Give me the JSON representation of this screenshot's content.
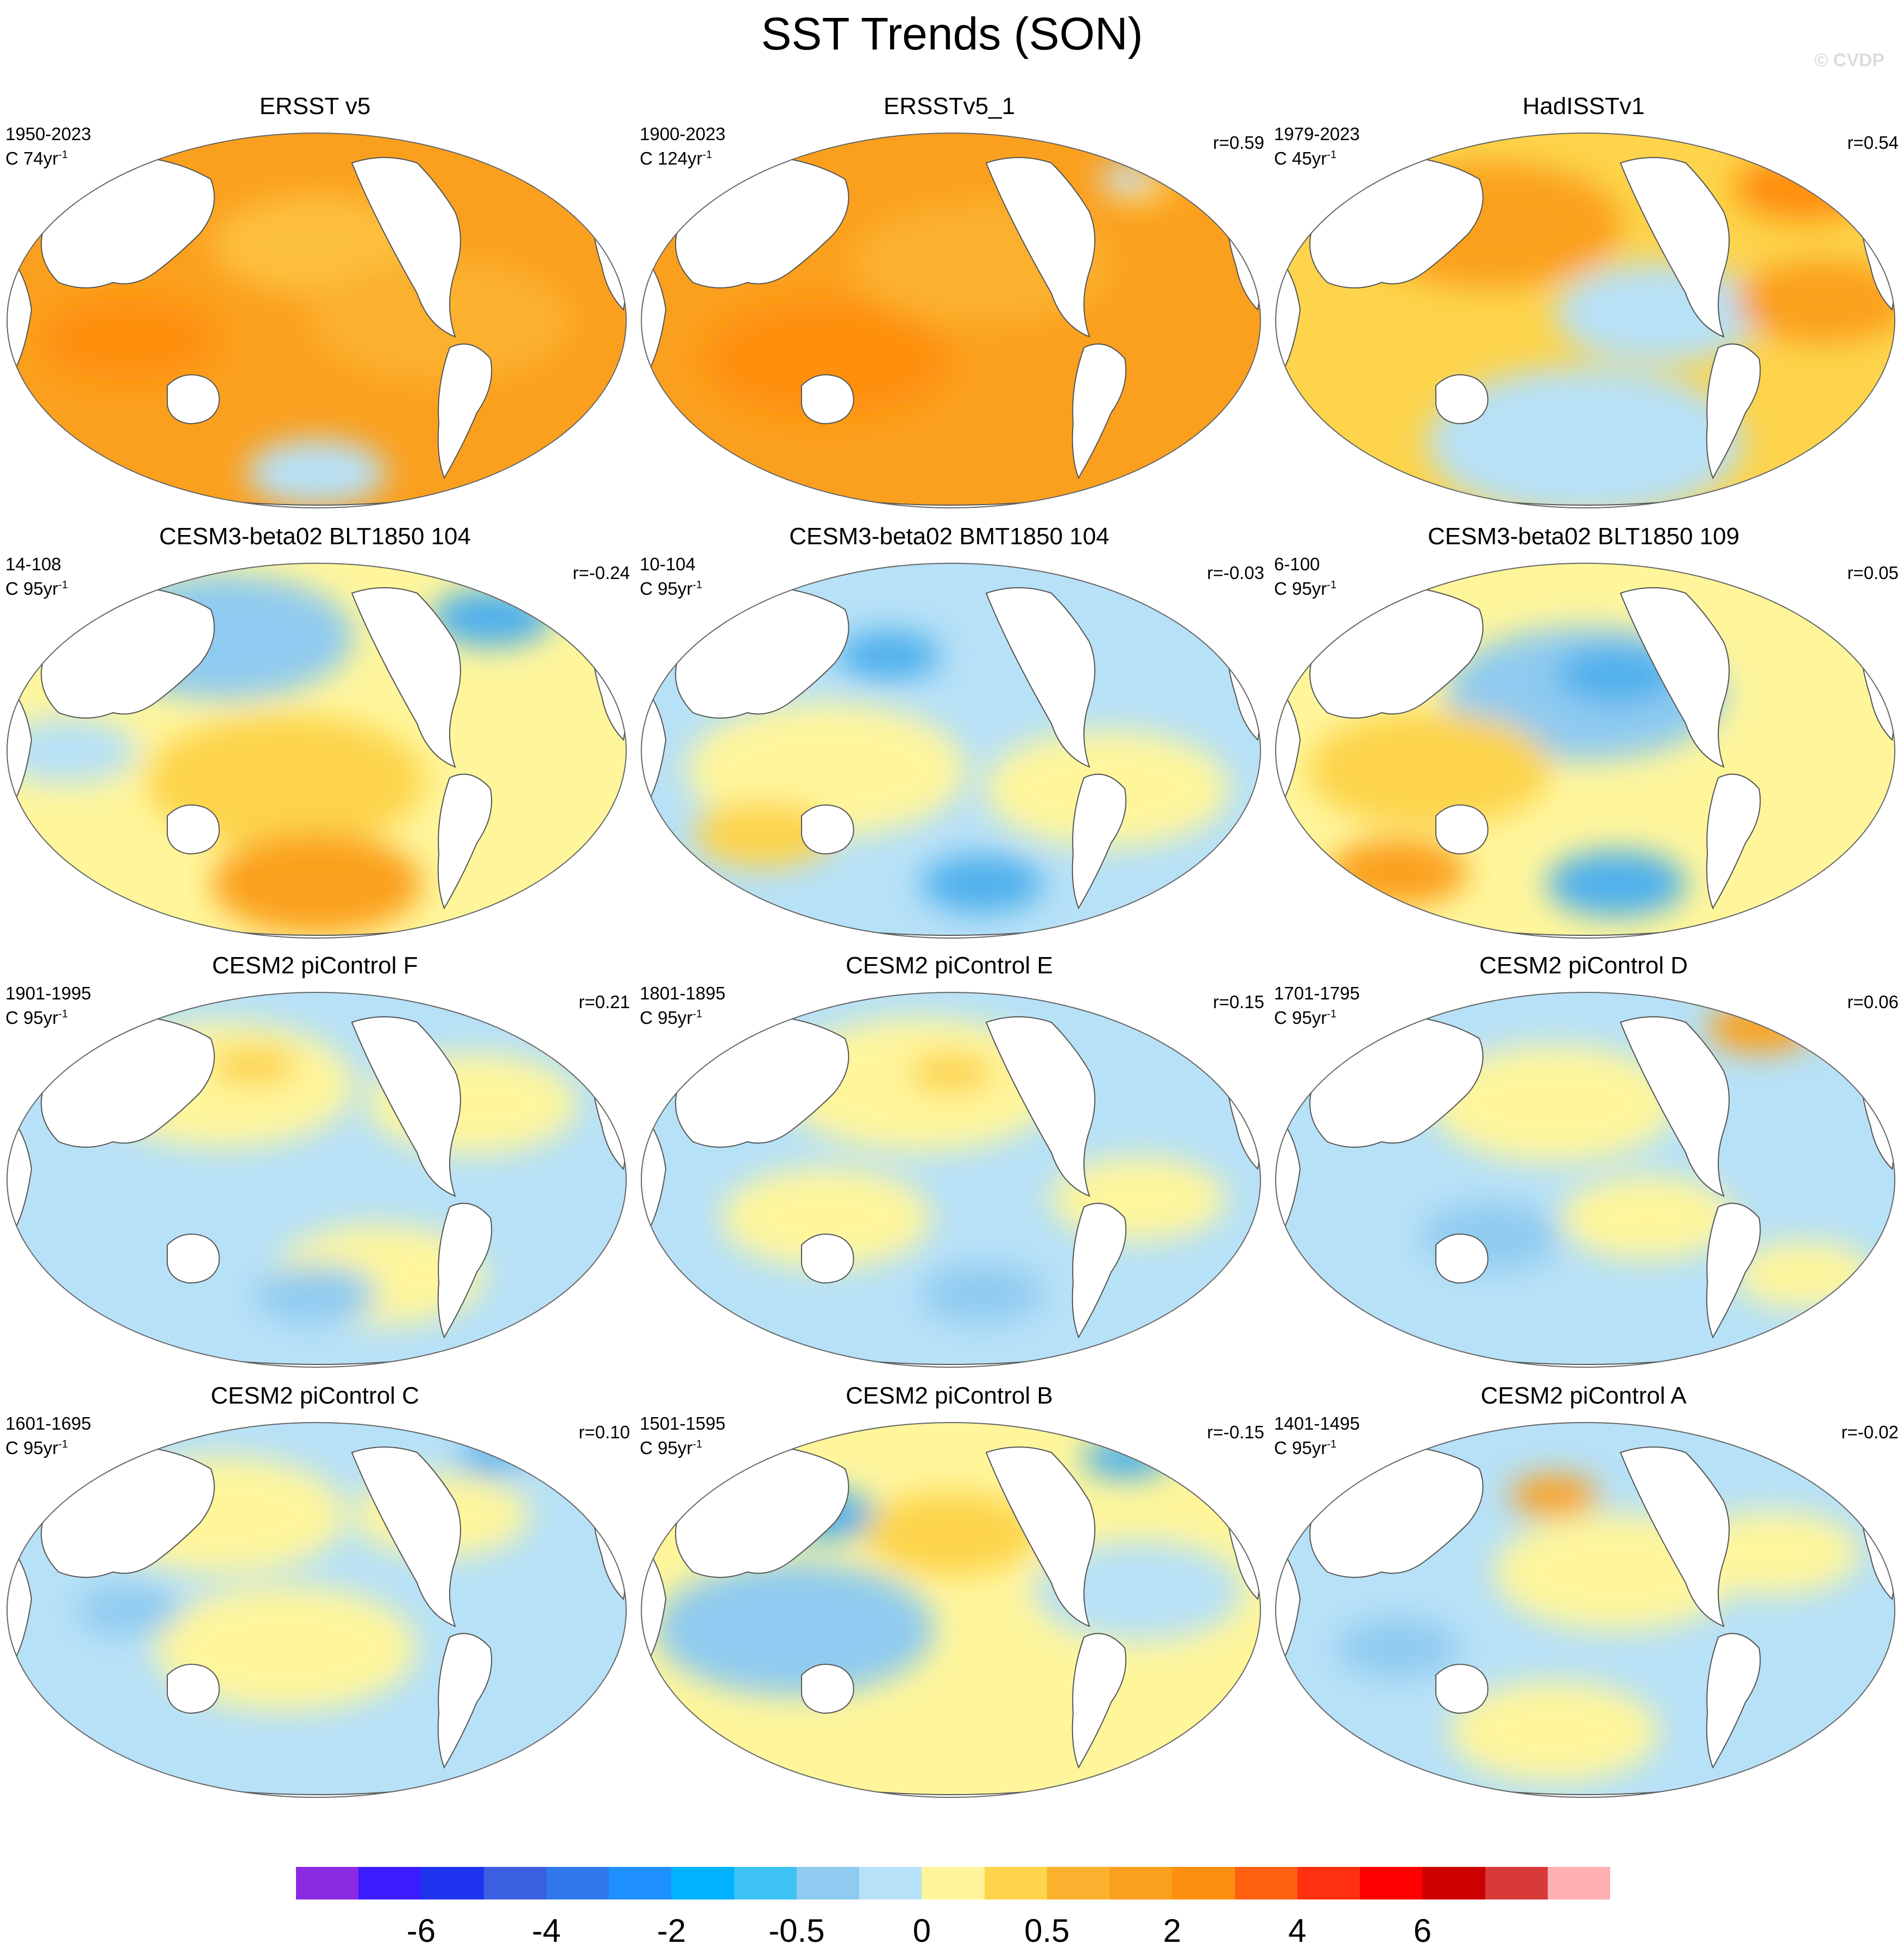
{
  "title": "SST Trends (SON)",
  "copyright": "© CVDP",
  "colors": {
    "land": "#ffffff",
    "coast": "#555555",
    "ocean_warm_deep": "#fba01e",
    "ocean_warm": "#fdd44b",
    "ocean_neutral_warm": "#fff69c",
    "ocean_neutral_cool": "#b7e1f7",
    "ocean_cool": "#8fcbf0"
  },
  "panels": [
    {
      "title": "ERSST v5",
      "period": "1950-2023",
      "units_base": "C 74yr",
      "units_exp": "-1",
      "corr": "",
      "bg": "#fba01e",
      "blobs": [
        [
          "#fdc03c",
          0.5,
          0.3,
          0.12
        ],
        [
          "#fbb12d",
          0.7,
          0.5,
          0.15
        ],
        [
          "#b7e1f7",
          0.5,
          0.9,
          0.08
        ],
        [
          "#ff8f0f",
          0.2,
          0.55,
          0.1
        ]
      ]
    },
    {
      "title": "ERSSTv5_1",
      "period": "1900-2023",
      "units_base": "C 124yr",
      "units_exp": "-1",
      "corr": "r=0.59",
      "bg": "#fba01e",
      "blobs": [
        [
          "#ff8f0f",
          0.3,
          0.6,
          0.14
        ],
        [
          "#fbb12d",
          0.55,
          0.35,
          0.15
        ],
        [
          "#fdd44b",
          0.8,
          0.15,
          0.04
        ],
        [
          "#b7e1f7",
          0.78,
          0.12,
          0.03
        ]
      ]
    },
    {
      "title": "HadISSTv1",
      "period": "1979-2023",
      "units_base": "C 45yr",
      "units_exp": "-1",
      "corr": "r=0.54",
      "bg": "#fdd44b",
      "blobs": [
        [
          "#fba01e",
          0.35,
          0.25,
          0.15
        ],
        [
          "#b7e1f7",
          0.62,
          0.48,
          0.12
        ],
        [
          "#b7e1f7",
          0.5,
          0.82,
          0.18
        ],
        [
          "#ff8f0f",
          0.85,
          0.15,
          0.08
        ],
        [
          "#fba01e",
          0.88,
          0.45,
          0.1
        ]
      ]
    },
    {
      "title": "CESM3-beta02 BLT1850 104",
      "period": "14-108",
      "units_base": "C 95yr",
      "units_exp": "-1",
      "corr": "r=-0.24",
      "bg": "#fff69c",
      "blobs": [
        [
          "#8fcbf0",
          0.35,
          0.2,
          0.15
        ],
        [
          "#4fb0ec",
          0.78,
          0.15,
          0.07
        ],
        [
          "#fdd44b",
          0.45,
          0.58,
          0.16
        ],
        [
          "#fba01e",
          0.5,
          0.85,
          0.12
        ],
        [
          "#b7e1f7",
          0.1,
          0.5,
          0.08
        ]
      ]
    },
    {
      "title": "CESM3-beta02 BMT1850 104",
      "period": "10-104",
      "units_base": "C 95yr",
      "units_exp": "-1",
      "corr": "r=-0.03",
      "bg": "#b7e1f7",
      "blobs": [
        [
          "#fff69c",
          0.3,
          0.55,
          0.16
        ],
        [
          "#fff69c",
          0.75,
          0.6,
          0.14
        ],
        [
          "#4fb0ec",
          0.4,
          0.25,
          0.06
        ],
        [
          "#4fb0ec",
          0.55,
          0.85,
          0.07
        ],
        [
          "#fdd44b",
          0.2,
          0.72,
          0.08
        ]
      ]
    },
    {
      "title": "CESM3-beta02 BLT1850 109",
      "period": "6-100",
      "units_base": "C 95yr",
      "units_exp": "-1",
      "corr": "r=0.05",
      "bg": "#fff69c",
      "blobs": [
        [
          "#8fcbf0",
          0.5,
          0.35,
          0.16
        ],
        [
          "#4fb0ec",
          0.55,
          0.3,
          0.07
        ],
        [
          "#fdd44b",
          0.25,
          0.55,
          0.14
        ],
        [
          "#4fb0ec",
          0.55,
          0.85,
          0.08
        ],
        [
          "#fba01e",
          0.2,
          0.82,
          0.08
        ]
      ]
    },
    {
      "title": "CESM2 piControl F",
      "period": "1901-1995",
      "units_base": "C 95yr",
      "units_exp": "-1",
      "corr": "r=0.21",
      "bg": "#b7e1f7",
      "blobs": [
        [
          "#fff69c",
          0.35,
          0.25,
          0.15
        ],
        [
          "#fff69c",
          0.75,
          0.3,
          0.12
        ],
        [
          "#fdd44b",
          0.4,
          0.2,
          0.05
        ],
        [
          "#fff69c",
          0.6,
          0.75,
          0.12
        ],
        [
          "#8fcbf0",
          0.5,
          0.8,
          0.07
        ]
      ]
    },
    {
      "title": "CESM2 piControl E",
      "period": "1801-1895",
      "units_base": "C 95yr",
      "units_exp": "-1",
      "corr": "r=0.15",
      "bg": "#b7e1f7",
      "blobs": [
        [
          "#fff69c",
          0.45,
          0.25,
          0.16
        ],
        [
          "#fdd44b",
          0.5,
          0.22,
          0.05
        ],
        [
          "#fff69c",
          0.3,
          0.6,
          0.12
        ],
        [
          "#fff69c",
          0.8,
          0.55,
          0.1
        ],
        [
          "#8fcbf0",
          0.55,
          0.8,
          0.07
        ]
      ]
    },
    {
      "title": "CESM2 piControl D",
      "period": "1701-1795",
      "units_base": "C 95yr",
      "units_exp": "-1",
      "corr": "r=0.06",
      "bg": "#b7e1f7",
      "blobs": [
        [
          "#fff69c",
          0.45,
          0.3,
          0.14
        ],
        [
          "#fba01e",
          0.78,
          0.1,
          0.06
        ],
        [
          "#fff69c",
          0.6,
          0.6,
          0.1
        ],
        [
          "#8fcbf0",
          0.35,
          0.65,
          0.08
        ],
        [
          "#fff69c",
          0.85,
          0.75,
          0.08
        ]
      ]
    },
    {
      "title": "CESM2 piControl C",
      "period": "1601-1695",
      "units_base": "C 95yr",
      "units_exp": "-1",
      "corr": "r=0.10",
      "bg": "#b7e1f7",
      "blobs": [
        [
          "#fff69c",
          0.35,
          0.25,
          0.14
        ],
        [
          "#fff69c",
          0.7,
          0.25,
          0.1
        ],
        [
          "#fff69c",
          0.45,
          0.6,
          0.15
        ],
        [
          "#8fcbf0",
          0.2,
          0.5,
          0.06
        ],
        [
          "#4fb0ec",
          0.78,
          0.1,
          0.04
        ]
      ]
    },
    {
      "title": "CESM2 piControl B",
      "period": "1501-1595",
      "units_base": "C 95yr",
      "units_exp": "-1",
      "corr": "r=-0.15",
      "bg": "#fff69c",
      "blobs": [
        [
          "#8fcbf0",
          0.25,
          0.55,
          0.16
        ],
        [
          "#4fb0ec",
          0.3,
          0.25,
          0.06
        ],
        [
          "#fdd44b",
          0.5,
          0.3,
          0.1
        ],
        [
          "#b7e1f7",
          0.8,
          0.45,
          0.12
        ],
        [
          "#4fb0ec",
          0.78,
          0.1,
          0.05
        ]
      ]
    },
    {
      "title": "CESM2 piControl A",
      "period": "1401-1495",
      "units_base": "C 95yr",
      "units_exp": "-1",
      "corr": "r=-0.02",
      "bg": "#b7e1f7",
      "blobs": [
        [
          "#fff69c",
          0.55,
          0.4,
          0.14
        ],
        [
          "#fba01e",
          0.45,
          0.2,
          0.05
        ],
        [
          "#fff69c",
          0.8,
          0.35,
          0.1
        ],
        [
          "#8fcbf0",
          0.2,
          0.6,
          0.07
        ],
        [
          "#fff69c",
          0.45,
          0.82,
          0.12
        ]
      ]
    }
  ],
  "colorbar": {
    "colors": [
      "#8a2be2",
      "#3a1cff",
      "#1e34ee",
      "#3a60e0",
      "#2f78ea",
      "#1e90ff",
      "#00b2ff",
      "#3cc3f4",
      "#8fcbf0",
      "#b7e1f7",
      "#fff69c",
      "#fdd44b",
      "#fbb12d",
      "#fba01e",
      "#ff8f0f",
      "#ff6010",
      "#ff3010",
      "#ff0000",
      "#cc0000",
      "#d83a3a",
      "#ffb0b0"
    ],
    "labels": [
      "-6",
      "-4",
      "-2",
      "-0.5",
      "0",
      "0.5",
      "2",
      "4",
      "6"
    ]
  }
}
